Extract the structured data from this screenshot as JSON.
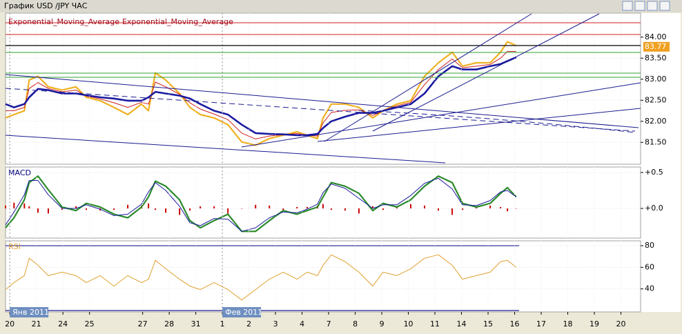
{
  "window_title": "График USD /JPY  ЧАС",
  "chart_data": [
    {
      "type": "line",
      "x": [
        -0.16,
        0.16,
        0.55,
        0.73,
        1.06,
        1.45,
        1.97,
        2.49,
        2.88,
        3.4,
        3.92,
        4.44,
        4.96,
        5.22,
        5.48,
        5.87,
        6.39,
        6.78,
        7.17,
        7.69,
        8.21,
        8.73,
        9.25,
        9.77,
        10.29,
        10.81,
        11.19,
        11.58,
        11.79,
        12.1,
        12.62,
        13.14,
        13.66,
        14.05,
        14.57,
        15.09,
        15.61,
        16.13,
        16.65,
        17.04,
        17.56,
        18.08,
        18.47,
        18.73,
        19.06
      ],
      "series": [
        {
          "color": "#f0b020",
          "values": [
            82.08,
            82.16,
            82.25,
            82.98,
            83.07,
            82.82,
            82.74,
            82.82,
            82.57,
            82.49,
            82.33,
            82.16,
            82.41,
            82.25,
            83.15,
            82.98,
            82.66,
            82.33,
            82.16,
            82.08,
            81.92,
            81.51,
            81.43,
            81.59,
            81.67,
            81.75,
            81.67,
            81.59,
            82.08,
            82.41,
            82.41,
            82.33,
            82.08,
            82.25,
            82.41,
            82.49,
            83.07,
            83.39,
            83.64,
            83.31,
            83.39,
            83.39,
            83.64,
            83.89,
            83.8
          ]
        },
        {
          "name": "Exponential_Moving_Average",
          "color": "#cc2020",
          "values": [
            82.25,
            82.25,
            82.33,
            82.78,
            82.92,
            82.78,
            82.7,
            82.74,
            82.6,
            82.53,
            82.44,
            82.33,
            82.45,
            82.41,
            82.93,
            82.82,
            82.64,
            82.44,
            82.29,
            82.17,
            82.04,
            81.72,
            81.58,
            81.65,
            81.68,
            81.71,
            81.67,
            81.65,
            81.96,
            82.21,
            82.26,
            82.27,
            82.14,
            82.25,
            82.37,
            82.45,
            82.87,
            83.23,
            83.48,
            83.27,
            83.31,
            83.35,
            83.5,
            83.66,
            83.66
          ]
        },
        {
          "name": "Exponential_Moving_Average",
          "color": "#1a1aa0",
          "values": [
            82.41,
            82.33,
            82.41,
            82.57,
            82.77,
            82.74,
            82.66,
            82.66,
            82.62,
            82.57,
            82.54,
            82.49,
            82.49,
            82.57,
            82.7,
            82.66,
            82.61,
            82.54,
            82.41,
            82.25,
            82.16,
            81.92,
            81.72,
            81.7,
            81.69,
            81.67,
            81.67,
            81.7,
            81.84,
            82.0,
            82.11,
            82.2,
            82.2,
            82.25,
            82.33,
            82.41,
            82.66,
            83.07,
            83.31,
            83.23,
            83.23,
            83.31,
            83.36,
            83.43,
            83.52
          ]
        }
      ],
      "last_price": 83.77,
      "xlim": [
        -0.16,
        23.74
      ],
      "ylim": [
        80.98,
        84.57
      ],
      "yticks": [
        {
          "value": 84,
          "label": "84.00"
        },
        {
          "value": 83.5,
          "label": "83.50"
        },
        {
          "value": 83,
          "label": "83.00"
        },
        {
          "value": 82.5,
          "label": "82.50"
        },
        {
          "value": 82,
          "label": "82.00"
        },
        {
          "value": 81.5,
          "label": "81.50"
        }
      ],
      "grid": true
    },
    {
      "type": "line",
      "title": "MACD",
      "x": [
        -0.16,
        0.16,
        0.55,
        0.73,
        1.06,
        1.45,
        1.97,
        2.49,
        2.88,
        3.4,
        3.92,
        4.44,
        4.96,
        5.22,
        5.48,
        5.87,
        6.39,
        6.78,
        7.17,
        7.69,
        8.21,
        8.73,
        9.25,
        9.77,
        10.29,
        10.81,
        11.19,
        11.58,
        11.79,
        12.1,
        12.62,
        13.14,
        13.66,
        14.05,
        14.57,
        15.09,
        15.61,
        16.13,
        16.65,
        17.04,
        17.56,
        18.08,
        18.47,
        18.73,
        19.06
      ],
      "series": [
        {
          "kind": "bar",
          "color": "#cc0000",
          "values": [
            0.04,
            0.08,
            0.07,
            0.03,
            -0.06,
            -0.07,
            -0.02,
            0.03,
            -0.02,
            -0.03,
            -0.02,
            0.05,
            0.04,
            0.07,
            -0.02,
            -0.06,
            -0.09,
            -0.03,
            0.03,
            0.03,
            -0.07,
            0,
            0.05,
            0.04,
            -0.02,
            0.02,
            0.02,
            0.04,
            0.06,
            -0.02,
            -0.03,
            -0.07,
            0.03,
            -0.02,
            0.03,
            0.06,
            0.04,
            -0.03,
            -0.09,
            -0.02,
            0.02,
            0.04,
            0.02,
            -0.04,
            0
          ]
        },
        {
          "color": "#2a8a2a",
          "width": 2.2,
          "values": [
            -0.27,
            -0.13,
            0.12,
            0.36,
            0.45,
            0.26,
            0.02,
            -0.03,
            0.07,
            0.02,
            -0.08,
            -0.13,
            0.02,
            0.16,
            0.38,
            0.31,
            0.12,
            -0.17,
            -0.27,
            -0.17,
            -0.08,
            -0.32,
            -0.32,
            -0.17,
            -0.03,
            -0.08,
            -0.03,
            0.02,
            0.16,
            0.36,
            0.31,
            0.21,
            -0.03,
            0.07,
            0.02,
            0.12,
            0.31,
            0.45,
            0.36,
            0.07,
            0.02,
            0.07,
            0.21,
            0.29,
            0.16
          ]
        },
        {
          "color": "#1a1aa0",
          "width": 1,
          "values": [
            -0.23,
            -0.05,
            0.19,
            0.39,
            0.39,
            0.19,
            0.0,
            0.0,
            0.05,
            -0.01,
            -0.1,
            -0.08,
            0.06,
            0.23,
            0.36,
            0.25,
            0.03,
            -0.2,
            -0.24,
            -0.14,
            -0.15,
            -0.32,
            -0.27,
            -0.13,
            -0.05,
            -0.06,
            -0.01,
            0.06,
            0.22,
            0.34,
            0.28,
            0.14,
            0.0,
            0.05,
            0.05,
            0.18,
            0.35,
            0.42,
            0.27,
            0.05,
            0.04,
            0.11,
            0.23,
            0.25,
            0.16
          ]
        }
      ],
      "xlim": [
        -0.16,
        23.74
      ],
      "ylim": [
        -0.413,
        0.577
      ],
      "yticks": [
        {
          "value": 0.5,
          "label": "+0.5"
        },
        {
          "value": 0,
          "label": "+0.0"
        }
      ],
      "grid": true
    },
    {
      "type": "line",
      "title": "RSI",
      "x": [
        -0.16,
        0.16,
        0.55,
        0.73,
        1.06,
        1.45,
        1.97,
        2.49,
        2.88,
        3.4,
        3.92,
        4.44,
        4.96,
        5.22,
        5.48,
        5.87,
        6.39,
        6.78,
        7.17,
        7.69,
        8.21,
        8.73,
        9.25,
        9.77,
        10.29,
        10.81,
        11.19,
        11.58,
        11.79,
        12.1,
        12.62,
        13.14,
        13.66,
        14.05,
        14.57,
        15.09,
        15.61,
        16.13,
        16.65,
        17.04,
        17.56,
        18.08,
        18.47,
        18.73,
        19.06
      ],
      "series": [
        {
          "color": "#e0a030",
          "width": 1,
          "values": [
            39.4,
            45.8,
            52.3,
            68.4,
            61.9,
            52.3,
            55.5,
            52.3,
            45.8,
            52.3,
            42.6,
            52.3,
            45.8,
            49.0,
            66.5,
            58.7,
            49.0,
            42.6,
            39.4,
            45.8,
            39.4,
            29.7,
            39.4,
            49.0,
            55.5,
            49.0,
            55.5,
            52.3,
            61.9,
            71.6,
            65.2,
            55.5,
            42.6,
            55.5,
            52.3,
            58.7,
            68.4,
            71.6,
            61.9,
            49.0,
            52.3,
            55.5,
            65.2,
            66.5,
            60.0
          ]
        }
      ],
      "levels": [
        80,
        20
      ],
      "xlim": [
        -0.16,
        23.74
      ],
      "ylim": [
        18.7,
        84.5
      ],
      "yticks": [
        80,
        60,
        40
      ],
      "xticks": [
        {
          "value": 0,
          "label": "20"
        },
        {
          "value": 1,
          "label": "21"
        },
        {
          "value": 2,
          "label": "24"
        },
        {
          "value": 3,
          "label": "25"
        },
        {
          "value": 5,
          "label": "27"
        },
        {
          "value": 6,
          "label": "28"
        },
        {
          "value": 7,
          "label": "31"
        },
        {
          "value": 8,
          "label": "1"
        },
        {
          "value": 9,
          "label": "2"
        },
        {
          "value": 10,
          "label": "3"
        },
        {
          "value": 11,
          "label": "4"
        },
        {
          "value": 12,
          "label": "7"
        },
        {
          "value": 13,
          "label": "8"
        },
        {
          "value": 14,
          "label": "9"
        },
        {
          "value": 15,
          "label": "10"
        },
        {
          "value": 16,
          "label": "11"
        },
        {
          "value": 17,
          "label": "14"
        },
        {
          "value": 18,
          "label": "15"
        },
        {
          "value": 19,
          "label": "16"
        },
        {
          "value": 20,
          "label": "17"
        },
        {
          "value": 21,
          "label": "18"
        },
        {
          "value": 22,
          "label": "19"
        },
        {
          "value": 23,
          "label": "20"
        }
      ],
      "period_labels": [
        {
          "value": 0,
          "label": "Янв 2011"
        },
        {
          "value": 8,
          "label": "Фев 2011"
        }
      ],
      "grid": true
    }
  ]
}
